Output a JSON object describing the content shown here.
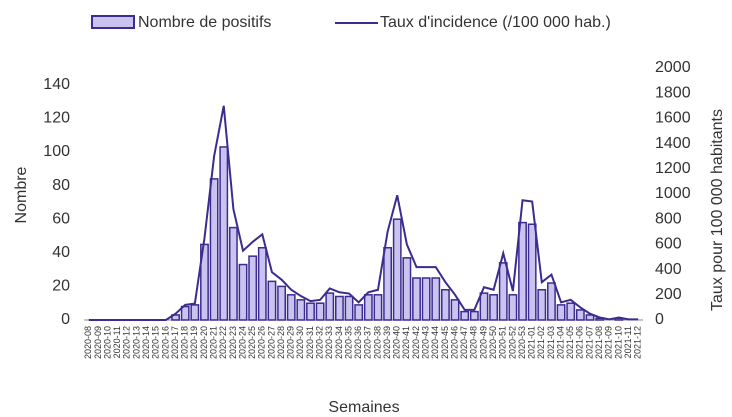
{
  "chart_data": {
    "type": "bar_line",
    "categories": [
      "2020-08",
      "2020-09",
      "2020-10",
      "2020-11",
      "2020-12",
      "2020-13",
      "2020-14",
      "2020-15",
      "2020-16",
      "2020-17",
      "2020-18",
      "2020-19",
      "2020-20",
      "2020-21",
      "2020-22",
      "2020-23",
      "2020-24",
      "2020-25",
      "2020-26",
      "2020-27",
      "2020-28",
      "2020-29",
      "2020-30",
      "2020-31",
      "2020-32",
      "2020-33",
      "2020-34",
      "2020-35",
      "2020-36",
      "2020-37",
      "2020-38",
      "2020-39",
      "2020-40",
      "2020-41",
      "2020-42",
      "2020-43",
      "2020-44",
      "2020-45",
      "2020-46",
      "2020-47",
      "2020-48",
      "2020-49",
      "2020-50",
      "2020-51",
      "2020-52",
      "2020-53",
      "2021-01",
      "2021-02",
      "2021-03",
      "2021-04",
      "2021-05",
      "2021-06",
      "2021-07",
      "2021-08",
      "2021-09",
      "2021-10",
      "2021-11",
      "2021-12"
    ],
    "series": [
      {
        "name": "Nombre de positifs",
        "color": "#c9c3ef",
        "stroke": "#3d2b8f",
        "values": [
          0,
          0,
          0,
          0,
          0,
          0,
          0,
          0,
          0,
          3,
          8,
          9,
          45,
          84,
          103,
          55,
          33,
          38,
          43,
          23,
          20,
          15,
          12,
          10,
          10,
          16,
          14,
          14,
          9,
          15,
          15,
          43,
          60,
          37,
          25,
          25,
          25,
          18,
          12,
          5,
          5,
          16,
          15,
          34,
          15,
          58,
          57,
          18,
          22,
          9,
          10,
          6,
          3,
          1,
          0,
          1,
          0,
          0
        ]
      },
      {
        "name": "Taux d'incidence (/100 000 hab.)",
        "color": "#3d2b8f",
        "axis": "y2",
        "values": [
          0,
          0,
          0,
          0,
          0,
          0,
          0,
          0,
          0,
          50,
          120,
          130,
          650,
          1300,
          1700,
          880,
          550,
          620,
          680,
          380,
          320,
          240,
          190,
          150,
          160,
          250,
          220,
          210,
          140,
          220,
          240,
          700,
          990,
          600,
          420,
          420,
          420,
          300,
          200,
          80,
          80,
          260,
          240,
          530,
          230,
          950,
          940,
          300,
          360,
          140,
          160,
          100,
          50,
          20,
          5,
          20,
          5,
          5
        ]
      }
    ],
    "y_label": "Nombre",
    "y2_label": "Taux pour 100 000 habitants",
    "x_label": "Semaines",
    "ylim": [
      0,
      150
    ],
    "yticks": [
      0,
      20,
      40,
      60,
      80,
      100,
      120,
      140
    ],
    "y2lim": [
      0,
      2000
    ],
    "y2ticks": [
      0,
      200,
      400,
      600,
      800,
      1000,
      1200,
      1400,
      1600,
      1800,
      2000
    ]
  }
}
